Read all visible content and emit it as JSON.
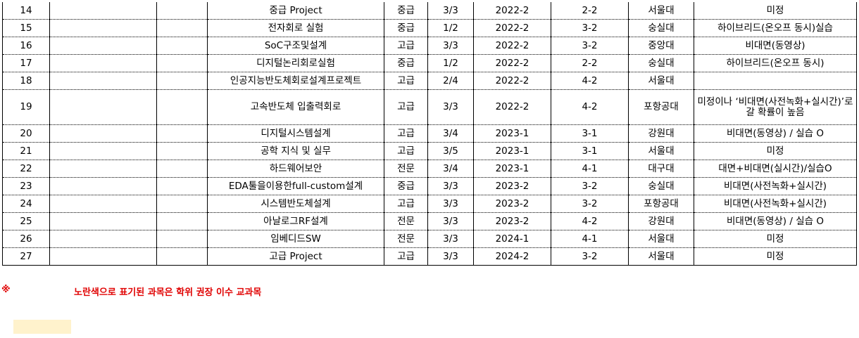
{
  "rows": [
    {
      "no": "14",
      "name": "중급 Project",
      "level": "중급",
      "credit": "3/3",
      "semester": "2022-2",
      "grade": "2-2",
      "univ": "서울대",
      "mode": "미정"
    },
    {
      "no": "15",
      "name": "전자회로 실험",
      "level": "중급",
      "credit": "1/2",
      "semester": "2022-2",
      "grade": "3-2",
      "univ": "숭실대",
      "mode": "하이브리드(온오프 동시)실습"
    },
    {
      "no": "16",
      "name": "SoC구조및설계",
      "level": "고급",
      "credit": "3/3",
      "semester": "2022-2",
      "grade": "3-2",
      "univ": "중앙대",
      "mode": "비대면(동영상)"
    },
    {
      "no": "17",
      "name": "디지털논리회로실험",
      "level": "중급",
      "credit": "1/2",
      "semester": "2022-2",
      "grade": "2-2",
      "univ": "숭실대",
      "mode": "하이브리드(온오프 동시)"
    },
    {
      "no": "18",
      "name": "인공지능반도체회로설계프로젝트",
      "level": "고급",
      "credit": "2/4",
      "semester": "2022-2",
      "grade": "4-2",
      "univ": "서울대",
      "mode": ""
    },
    {
      "no": "19",
      "name": "고속반도체 입출력회로",
      "level": "고급",
      "credit": "3/3",
      "semester": "2022-2",
      "grade": "4-2",
      "univ": "포항공대",
      "mode": "미정이나 ‘비대면(사전녹화+실시간)’로 갈 확률이 높음"
    },
    {
      "no": "20",
      "name": "디지털시스템설계",
      "level": "고급",
      "credit": "3/4",
      "semester": "2023-1",
      "grade": "3-1",
      "univ": "강원대",
      "mode": "비대면(동영상) / 실습 O"
    },
    {
      "no": "21",
      "name": "공학 지식 및 실무",
      "level": "고급",
      "credit": "3/5",
      "semester": "2023-1",
      "grade": "3-1",
      "univ": "서울대",
      "mode": "미정"
    },
    {
      "no": "22",
      "name": "하드웨어보안",
      "level": "전문",
      "credit": "3/4",
      "semester": "2023-1",
      "grade": "4-1",
      "univ": "대구대",
      "mode": "대면+비대면(실시간)/실습O"
    },
    {
      "no": "23",
      "name": "EDA툴을이용한full-custom설계",
      "level": "중급",
      "credit": "3/3",
      "semester": "2023-2",
      "grade": "3-2",
      "univ": "숭실대",
      "mode": "비대면(사전녹화+실시간)"
    },
    {
      "no": "24",
      "name": "시스템반도체설계",
      "level": "고급",
      "credit": "3/3",
      "semester": "2023-2",
      "grade": "3-2",
      "univ": "포항공대",
      "mode": "비대면(사전녹화+실시간)"
    },
    {
      "no": "25",
      "name": "아날로그RF설계",
      "level": "전문",
      "credit": "3/3",
      "semester": "2023-2",
      "grade": "4-2",
      "univ": "강원대",
      "mode": "비대면(동영상) / 실습 O"
    },
    {
      "no": "26",
      "name": "임베디드SW",
      "level": "전문",
      "credit": "3/3",
      "semester": "2024-1",
      "grade": "4-1",
      "univ": "서울대",
      "mode": "미정"
    },
    {
      "no": "27",
      "name": "고급 Project",
      "level": "고급",
      "credit": "3/3",
      "semester": "2024-2",
      "grade": "3-2",
      "univ": "서울대",
      "mode": "미정"
    }
  ],
  "legend": {
    "mark": "※",
    "text": "노란색으로 표기된 과목은 학위 권장 이수 교과목",
    "highlight_color": "#fff2cc",
    "text_color": "#e00000"
  }
}
